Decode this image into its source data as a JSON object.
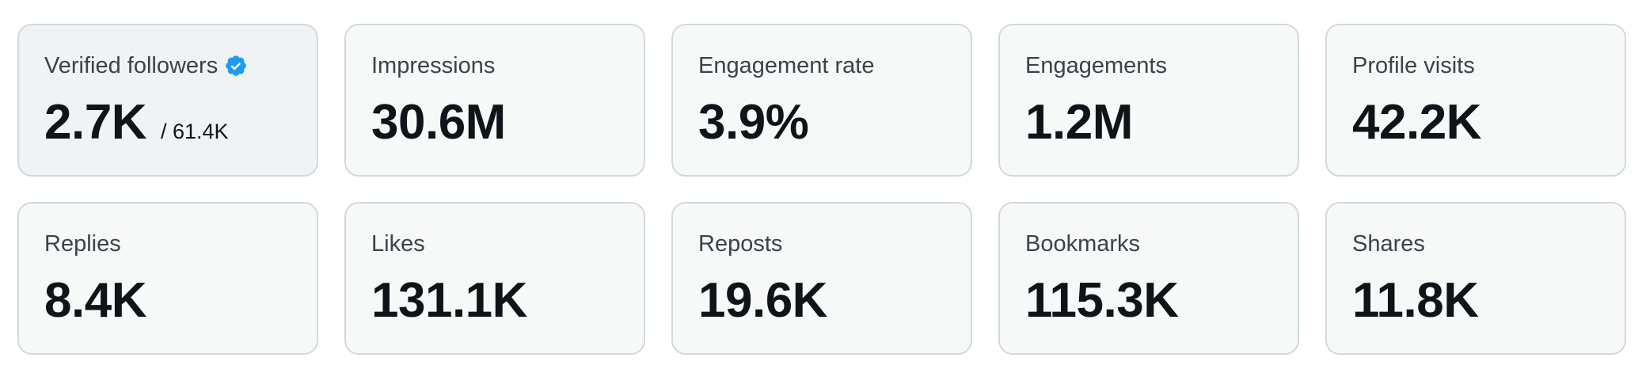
{
  "colors": {
    "card_background": "#f7f9f9",
    "card_background_highlight": "#eff3f4",
    "card_border": "#cfd9de",
    "verified_badge": "#1d9bf0",
    "value_text": "#0f1419",
    "label_text": "#3b4249"
  },
  "metrics": [
    {
      "label": "Verified followers",
      "value": "2.7K",
      "sub_value": "/ 61.4K",
      "icon": "verified-badge-icon"
    },
    {
      "label": "Impressions",
      "value": "30.6M"
    },
    {
      "label": "Engagement rate",
      "value": "3.9%"
    },
    {
      "label": "Engagements",
      "value": "1.2M"
    },
    {
      "label": "Profile visits",
      "value": "42.2K"
    },
    {
      "label": "Replies",
      "value": "8.4K"
    },
    {
      "label": "Likes",
      "value": "131.1K"
    },
    {
      "label": "Reposts",
      "value": "19.6K"
    },
    {
      "label": "Bookmarks",
      "value": "115.3K"
    },
    {
      "label": "Shares",
      "value": "11.8K"
    }
  ]
}
